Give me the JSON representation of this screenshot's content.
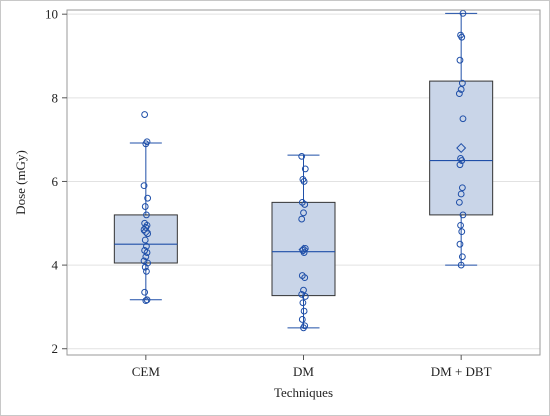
{
  "chart_data": {
    "type": "box",
    "title": "",
    "xlabel": "Techniques",
    "ylabel": "Dose (mGy)",
    "ylim": [
      1.85,
      10.1
    ],
    "yticks": [
      2,
      4,
      6,
      8,
      10
    ],
    "grid": "horizontal",
    "legend": "none",
    "colors": {
      "box_fill": "#c9d5e8",
      "line": "#1f4fa8",
      "grid": "#e2e2e2",
      "plot_border": "#9a9a9a"
    },
    "categories": [
      "CEM",
      "DM",
      "DM + DBT"
    ],
    "series": [
      {
        "name": "CEM",
        "whisker_low": 3.17,
        "q1": 4.05,
        "median": 4.5,
        "q3": 5.2,
        "whisker_high": 6.92,
        "mean": 4.8,
        "points": [
          3.15,
          3.17,
          3.35,
          3.85,
          3.95,
          4.05,
          4.1,
          4.2,
          4.3,
          4.35,
          4.45,
          4.6,
          4.75,
          4.85,
          4.9,
          4.95,
          5.0,
          5.2,
          5.4,
          5.6,
          5.9,
          6.9,
          6.95,
          7.6
        ]
      },
      {
        "name": "DM",
        "whisker_low": 2.5,
        "q1": 3.27,
        "median": 4.32,
        "q3": 5.5,
        "whisker_high": 6.63,
        "mean": 4.37,
        "points": [
          2.5,
          2.55,
          2.7,
          2.9,
          3.1,
          3.25,
          3.3,
          3.4,
          3.7,
          3.75,
          4.3,
          4.35,
          4.4,
          5.1,
          5.25,
          5.45,
          5.5,
          6.0,
          6.05,
          6.3,
          6.6
        ]
      },
      {
        "name": "DM + DBT",
        "whisker_low": 4.0,
        "q1": 5.2,
        "median": 6.5,
        "q3": 8.4,
        "whisker_high": 10.02,
        "mean": 6.8,
        "points": [
          4.0,
          4.2,
          4.5,
          4.8,
          4.95,
          5.2,
          5.5,
          5.7,
          5.85,
          6.4,
          6.5,
          6.55,
          7.5,
          8.1,
          8.2,
          8.35,
          8.9,
          9.45,
          9.5,
          10.02
        ]
      }
    ]
  }
}
